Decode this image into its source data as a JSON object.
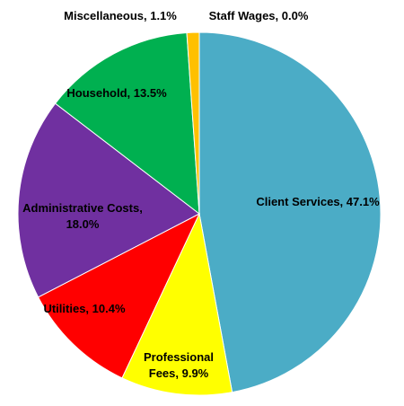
{
  "chart_data": {
    "type": "pie",
    "title": "",
    "slices": [
      {
        "label": "Client Services",
        "value": 47.1,
        "display": "Client Services, 47.1%",
        "color": "#4BACC6"
      },
      {
        "label": "Professional Fees",
        "value": 9.9,
        "display": "Professional Fees, 9.9%",
        "color": "#FFFF00"
      },
      {
        "label": "Utilities",
        "value": 10.4,
        "display": "Utilities, 10.4%",
        "color": "#FF0000"
      },
      {
        "label": "Administrative Costs",
        "value": 18.0,
        "display": "Administrative Costs, 18.0%",
        "color": "#7030A0"
      },
      {
        "label": "Household",
        "value": 13.5,
        "display": "Household, 13.5%",
        "color": "#00B050"
      },
      {
        "label": "Miscellaneous",
        "value": 1.1,
        "display": "Miscellaneous, 1.1%",
        "color": "#FFC000"
      },
      {
        "label": "Staff Wages",
        "value": 0.0,
        "display": "Staff Wages, 0.0%",
        "color": "#000000"
      }
    ],
    "legend": "none",
    "data_labels": "category name and percentage"
  }
}
